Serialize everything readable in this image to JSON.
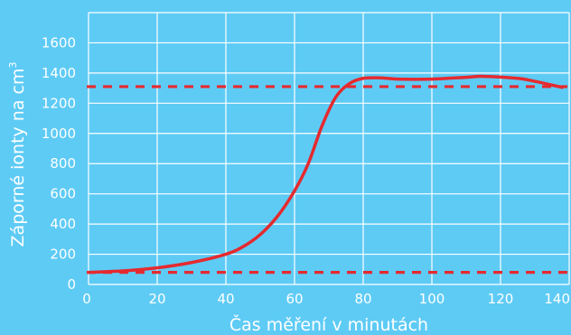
{
  "colors": {
    "background": "#5ecbf5",
    "grid": "#ffffff",
    "curve": "#e52a2f",
    "reference_lines": "#e52a2f",
    "text": "#ffffff"
  },
  "chart_data": {
    "type": "line",
    "title": "",
    "xlabel": "Čas měření v minutách",
    "ylabel": "Záporné ionty na cm",
    "ylabel_superscript": "3",
    "xlim": [
      0,
      140
    ],
    "ylim": [
      0,
      1800
    ],
    "x_ticks": [
      0,
      20,
      40,
      60,
      80,
      100,
      120,
      140
    ],
    "y_ticks": [
      0,
      200,
      400,
      600,
      800,
      1000,
      1200,
      1400,
      1600
    ],
    "grid": true,
    "legend": "none",
    "series": [
      {
        "points": [
          [
            0,
            80
          ],
          [
            10,
            90
          ],
          [
            20,
            110
          ],
          [
            30,
            145
          ],
          [
            40,
            200
          ],
          [
            45,
            250
          ],
          [
            50,
            330
          ],
          [
            55,
            450
          ],
          [
            60,
            620
          ],
          [
            64,
            800
          ],
          [
            68,
            1050
          ],
          [
            72,
            1240
          ],
          [
            76,
            1330
          ],
          [
            80,
            1365
          ],
          [
            85,
            1368
          ],
          [
            90,
            1360
          ],
          [
            100,
            1360
          ],
          [
            110,
            1372
          ],
          [
            115,
            1378
          ],
          [
            125,
            1365
          ],
          [
            130,
            1345
          ],
          [
            135,
            1320
          ],
          [
            138,
            1305
          ]
        ]
      }
    ],
    "reference_lines": [
      {
        "y": 1310,
        "style": "dashed"
      },
      {
        "y": 80,
        "style": "dashed"
      }
    ]
  }
}
